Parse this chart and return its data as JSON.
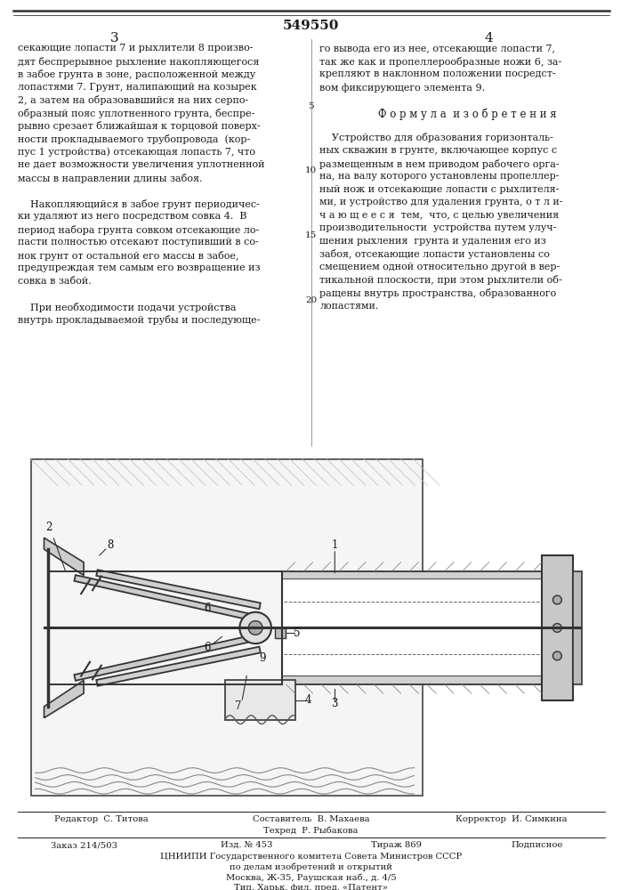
{
  "patent_number": "549550",
  "page_left": "3",
  "page_right": "4",
  "bg_color": "#ffffff",
  "text_color": "#1a1a1a",
  "border_color": "#333333",
  "left_column_text": [
    "секающие лопасти 7 и рыхлители 8 произво-",
    "дят беспрерывное рыхление накопляющегося",
    "в забое грунта в зоне, расположенной между",
    "лопастями 7. Грунт, налипающий на козырек",
    "2, а затем на образовавшийся на них серпо-",
    "образный пояс уплотненного грунта, беспре-",
    "рывно срезает ближайшая к торцовой поверх-",
    "ности прокладываемого трубопровода  (кор-",
    "пус 1 устройства) отсекающая лопасть 7, что",
    "не дает возможности увеличения уплотненной",
    "массы в направлении длины забоя.",
    "",
    "    Накопляющийся в забое грунт периодичес-",
    "ки удаляют из него посредством совка 4.  В",
    "период набора грунта совком отсекающие ло-",
    "пасти полностью отсекают поступивший в со-"
  ],
  "bottom_left_text": [
    "нок грунт от остальной его массы в забое,",
    "предупреждая тем самым его возвращение из",
    "совка в забой.",
    "",
    "    При необходимости подачи устройства",
    "внутрь прокладываемой трубы и последующе-"
  ],
  "right_column_text_top": [
    "го вывода его из нее, отсекающие лопасти 7,",
    "так же как и пропеллерообразные ножи 6, за-",
    "крепляют в наклонном положении посредст-",
    "вом фиксирующего элемента 9."
  ],
  "formula_title": "Ф о р м у л а  и з о б р е т е н и я",
  "right_column_text_formula": [
    "    Устройство для образования горизонталь-",
    "ных скважин в грунте, включающее корпус с",
    "размещенным в нем приводом рабочего орга-",
    "на, на валу которого установлены пропеллер-",
    "ный нож и отсекающие лопасти с рыхлителя-",
    "ми, и устройство для удаления грунта, о т л и-",
    "ч а ю щ е е с я  тем,  что, с целью увеличения",
    "производительности  устройства путем улуч-",
    "шения рыхления  грунта и удаления его из"
  ],
  "bottom_right_text": [
    "забоя, отсекающие лопасти установлены со",
    "смещением одной относительно другой в вер-",
    "тикальной плоскости, при этом рыхлители об-",
    "ращены внутрь пространства, образованного",
    "лопастями."
  ],
  "line_numbers": [
    [
      4,
      "5"
    ],
    [
      9,
      "10"
    ],
    [
      14,
      "15"
    ],
    [
      19,
      "20"
    ]
  ],
  "footer_editor": "Редактор  С. Титова",
  "footer_compiler": "Составитель  В. Махаева",
  "footer_tech": "Техред  Р. Рыбакова",
  "footer_corrector": "Корректор  И. Симкина",
  "footer_order": "Заказ 214/503",
  "footer_edition": "Изд. № 453",
  "footer_copies": "Тираж 869",
  "footer_subscription": "Подписное",
  "footer_org": "ЦНИИПИ Государственного комитета Совета Министров СССР",
  "footer_org2": "по делам изобретений и открытий",
  "footer_address": "Москва, Ж-35, Раушская наб., д. 4/5",
  "footer_print": "Тип. Харьк. фил. пред. «Патент»"
}
